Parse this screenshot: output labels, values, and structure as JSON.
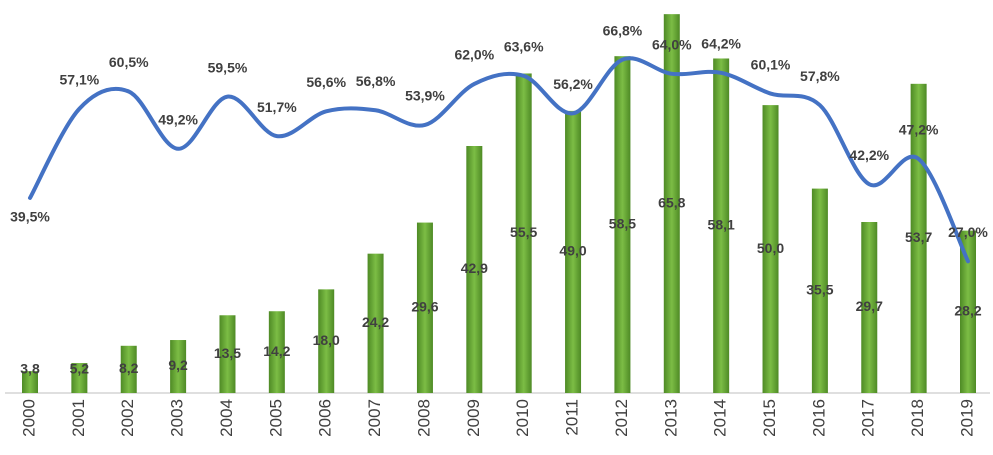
{
  "chart_data": {
    "type": "bar-line",
    "categories": [
      "2000",
      "2001",
      "2002",
      "2003",
      "2004",
      "2005",
      "2006",
      "2007",
      "2008",
      "2009",
      "2010",
      "2011",
      "2012",
      "2013",
      "2014",
      "2015",
      "2016",
      "2017",
      "2018",
      "2019"
    ],
    "series": [
      {
        "type": "bar",
        "color": "#6aa83a",
        "values": [
          3.8,
          5.2,
          8.2,
          9.2,
          13.5,
          14.2,
          18.0,
          24.2,
          29.6,
          42.9,
          55.5,
          49.0,
          58.5,
          65.8,
          58.1,
          50.0,
          35.5,
          29.7,
          53.7,
          28.2
        ],
        "value_labels": [
          "3,8",
          "5,2",
          "8,2",
          "9,2",
          "13,5",
          "14,2",
          "18,0",
          "24,2",
          "29,6",
          "42,9",
          "55,5",
          "49,0",
          "58,5",
          "65,8",
          "58,1",
          "50,0",
          "35,5",
          "29,7",
          "53,7",
          "28,2"
        ]
      },
      {
        "type": "line",
        "axis": "y2",
        "color": "#4472c4",
        "values": [
          39.5,
          57.1,
          60.5,
          49.2,
          59.5,
          51.7,
          56.6,
          56.8,
          53.9,
          62.0,
          63.6,
          56.2,
          66.8,
          64.0,
          64.2,
          60.1,
          57.8,
          42.2,
          47.2,
          27.0
        ],
        "value_labels": [
          "39,5%",
          "57,1%",
          "60,5%",
          "49,2%",
          "59,5%",
          "51,7%",
          "56,6%",
          "56,8%",
          "53,9%",
          "62,0%",
          "63,6%",
          "56,2%",
          "66,8%",
          "64,0%",
          "64,2%",
          "60,1%",
          "57,8%",
          "42,2%",
          "47,2%",
          "27,0%"
        ]
      }
    ],
    "ylim": [
      0,
      66
    ],
    "y2lim": [
      1,
      76
    ]
  }
}
